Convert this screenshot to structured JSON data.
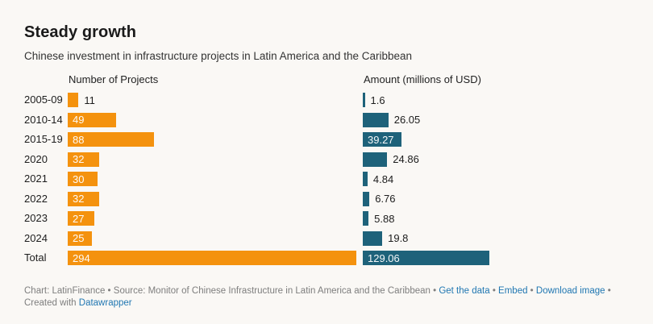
{
  "chart_data": {
    "type": "bar",
    "variant": "paired-horizontal-bar-table",
    "title": "Steady growth",
    "subtitle": "Chinese investment in infrastructure projects in Latin America and the Caribbean",
    "categories": [
      "2005-09",
      "2010-14",
      "2015-19",
      "2020",
      "2021",
      "2022",
      "2023",
      "2024",
      "Total"
    ],
    "series": [
      {
        "name": "Number of Projects",
        "values": [
          11,
          49,
          88,
          32,
          30,
          32,
          27,
          25,
          294
        ],
        "labels": [
          "11",
          "49",
          "88",
          "32",
          "30",
          "32",
          "27",
          "25",
          "294"
        ],
        "color": "#F4920E"
      },
      {
        "name": "Amount (millions of USD)",
        "values": [
          1.6,
          26.05,
          39.27,
          24.86,
          4.84,
          6.76,
          5.88,
          19.8,
          129.06
        ],
        "labels": [
          "1.6",
          "26.05",
          "39.27",
          "24.86",
          "4.84",
          "6.76",
          "5.88",
          "19.8",
          "129.06"
        ],
        "color": "#1E627A"
      }
    ],
    "xlim": [
      0,
      294
    ],
    "grid": false,
    "legend": "column headers above each bar column",
    "value_label_color_inside": "#FFFFFF",
    "value_label_color_outside": "#1D1D1D"
  },
  "footer": {
    "credit": "Chart: LatinFinance • Source: Monitor of Chinese Infrastructure in Latin America and the Caribbean",
    "separator": " • ",
    "links": {
      "get_data": "Get the data",
      "embed": "Embed",
      "download": "Download image"
    },
    "created_with": "Created with ",
    "creator_link": "Datawrapper",
    "link_color": "#2077B2"
  },
  "colors": {
    "background": "#FAF8F5",
    "bar_orange": "#F4920E",
    "bar_teal": "#1E627A"
  }
}
